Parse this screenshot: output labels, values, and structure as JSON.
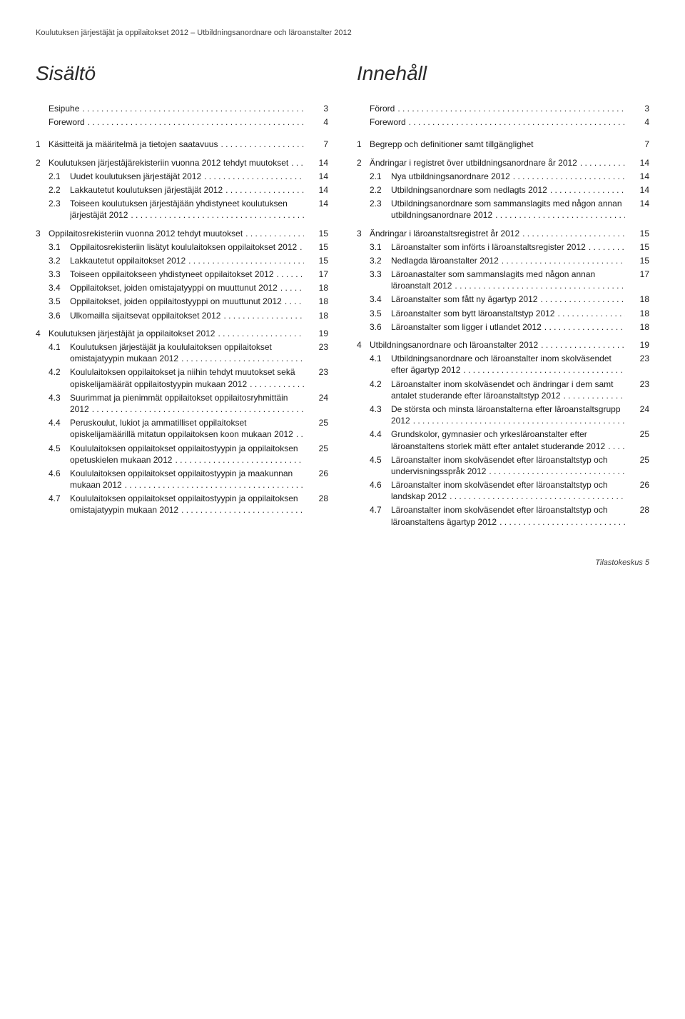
{
  "header": "Koulutuksen järjestäjät ja oppilaitokset 2012 – Utbildningsanordnare och läroanstalter 2012",
  "left": {
    "title": "Sisältö",
    "entries": [
      {
        "type": "top",
        "num": "",
        "label": "Esipuhe",
        "page": "3"
      },
      {
        "type": "top",
        "num": "",
        "label": "Foreword",
        "page": "4"
      },
      {
        "type": "gap-md"
      },
      {
        "type": "top",
        "num": "1",
        "label": "Käsitteitä ja määritelmä ja tietojen saatavuus",
        "page": "7"
      },
      {
        "type": "gap-sm"
      },
      {
        "type": "top",
        "num": "2",
        "label": "Koulutuksen järjestäjärekisteriin vuonna 2012 tehdyt muutokset",
        "page": "14"
      },
      {
        "type": "sub",
        "num": "2.1",
        "label": "Uudet koulutuksen järjestäjät 2012",
        "page": "14"
      },
      {
        "type": "sub",
        "num": "2.2",
        "label": "Lakkautetut koulutuksen järjestäjät 2012",
        "page": "14"
      },
      {
        "type": "sub",
        "num": "2.3",
        "label": "Toiseen koulutuksen järjestäjään yhdistyneet koulutuksen järjestäjät 2012",
        "page": "14"
      },
      {
        "type": "gap-sm"
      },
      {
        "type": "top",
        "num": "3",
        "label": "Oppilaitosrekisteriin vuonna 2012 tehdyt muutokset",
        "page": "15"
      },
      {
        "type": "sub",
        "num": "3.1",
        "label": "Oppilaitosrekisteriin lisätyt koululaitoksen oppilaitokset 2012",
        "page": "15"
      },
      {
        "type": "sub",
        "num": "3.2",
        "label": "Lakkautetut oppilaitokset 2012",
        "page": "15"
      },
      {
        "type": "sub",
        "num": "3.3",
        "label": "Toiseen oppilaitokseen yhdistyneet oppilaitokset 2012",
        "page": "17"
      },
      {
        "type": "sub",
        "num": "3.4",
        "label": "Oppilaitokset, joiden omistajatyyppi on muuttunut 2012",
        "page": "18"
      },
      {
        "type": "sub",
        "num": "3.5",
        "label": "Oppilaitokset, joiden oppilaitostyyppi on muuttunut 2012",
        "page": "18"
      },
      {
        "type": "sub",
        "num": "3.6",
        "label": "Ulkomailla sijaitsevat oppilaitokset 2012",
        "page": "18"
      },
      {
        "type": "gap-sm"
      },
      {
        "type": "top",
        "num": "4",
        "label": "Koulutuksen järjestäjät ja oppilaitokset 2012",
        "page": "19"
      },
      {
        "type": "sub",
        "num": "4.1",
        "label": "Koulutuksen järjestäjät ja koululaitoksen oppilaitokset omistajatyypin mukaan 2012",
        "page": "23"
      },
      {
        "type": "sub",
        "num": "4.2",
        "label": "Koululaitoksen oppilaitokset ja niihin tehdyt muutokset sekä opiskelijamäärät oppilaitostyypin mukaan 2012",
        "page": "23"
      },
      {
        "type": "sub",
        "num": "4.3",
        "label": "Suurimmat ja pienimmät oppilaitokset oppilaitosryhmittäin 2012",
        "page": "24"
      },
      {
        "type": "sub",
        "num": "4.4",
        "label": "Peruskoulut, lukiot ja ammatilliset oppilaitokset opiskelijamäärillä mitatun oppilaitoksen koon mukaan 2012",
        "page": "25"
      },
      {
        "type": "sub",
        "num": "4.5",
        "label": "Koululaitoksen oppilaitokset oppilaitostyypin ja oppilaitoksen opetuskielen mukaan 2012",
        "page": "25"
      },
      {
        "type": "sub",
        "num": "4.6",
        "label": "Koululaitoksen oppilaitokset oppilaitostyypin ja maakunnan mukaan 2012",
        "page": "26"
      },
      {
        "type": "sub",
        "num": "4.7",
        "label": "Koululaitoksen oppilaitokset oppilaitostyypin ja oppilaitoksen omistajatyypin mukaan 2012",
        "page": "28"
      }
    ]
  },
  "right": {
    "title": "Innehåll",
    "entries": [
      {
        "type": "top",
        "num": "",
        "label": "Förord",
        "page": "3"
      },
      {
        "type": "top",
        "num": "",
        "label": "Foreword",
        "page": "4"
      },
      {
        "type": "gap-md"
      },
      {
        "type": "top",
        "num": "1",
        "label": "Begrepp och definitioner samt tillgänglighet",
        "page": "7",
        "nolead": true
      },
      {
        "type": "gap-sm"
      },
      {
        "type": "top",
        "num": "2",
        "label": "Ändringar i registret över utbildningsanordnare år 2012",
        "page": "14"
      },
      {
        "type": "sub",
        "num": "2.1",
        "label": "Nya utbildningsanordnare 2012",
        "page": "14"
      },
      {
        "type": "sub",
        "num": "2.2",
        "label": "Utbildningsanordnare som nedlagts 2012",
        "page": "14"
      },
      {
        "type": "sub",
        "num": "2.3",
        "label": "Utbildningsanordnare som sammanslagits med någon annan utbildningsanordnare 2012",
        "page": "14"
      },
      {
        "type": "gap-sm"
      },
      {
        "type": "top",
        "num": "3",
        "label": "Ändringar i läroanstaltsregistret år 2012",
        "page": "15"
      },
      {
        "type": "sub",
        "num": "3.1",
        "label": "Läroanstalter som införts i läroanstaltsregister 2012",
        "page": "15"
      },
      {
        "type": "sub",
        "num": "3.2",
        "label": "Nedlagda läroanstalter 2012",
        "page": "15"
      },
      {
        "type": "sub",
        "num": "3.3",
        "label": "Läroanastalter som sammanslagits med någon annan läroanstalt 2012",
        "page": "17"
      },
      {
        "type": "sub",
        "num": "3.4",
        "label": "Läroanstalter som fått ny ägartyp 2012",
        "page": "18"
      },
      {
        "type": "sub",
        "num": "3.5",
        "label": "Läroanstalter som bytt läroanstaltstyp 2012",
        "page": "18"
      },
      {
        "type": "sub",
        "num": "3.6",
        "label": "Läroanstalter som ligger i utlandet 2012",
        "page": "18"
      },
      {
        "type": "gap-sm"
      },
      {
        "type": "top",
        "num": "4",
        "label": "Utbildningsanordnare och läroanstalter 2012",
        "page": "19"
      },
      {
        "type": "sub",
        "num": "4.1",
        "label": "Utbildningsanordnare och läroanstalter inom skolväsendet efter ägartyp 2012",
        "page": "23"
      },
      {
        "type": "sub",
        "num": "4.2",
        "label": "Läroanstalter inom skolväsendet och ändringar i dem samt antalet studerande efter läroanstaltstyp 2012",
        "page": "23"
      },
      {
        "type": "sub",
        "num": "4.3",
        "label": "De största och minsta läroanstalterna efter läroanstaltsgrupp 2012",
        "page": "24"
      },
      {
        "type": "sub",
        "num": "4.4",
        "label": "Grundskolor, gymnasier och yrkesläroanstalter efter läroanstaltens storlek mätt efter antalet studerande 2012",
        "page": "25"
      },
      {
        "type": "sub",
        "num": "4.5",
        "label": "Läroanstalter inom skolväsendet efter läroanstaltstyp och undervisningsspråk 2012",
        "page": "25"
      },
      {
        "type": "sub",
        "num": "4.6",
        "label": "Läroanstalter inom skolväsendet efter läroanstaltstyp och landskap 2012",
        "page": "26"
      },
      {
        "type": "sub",
        "num": "4.7",
        "label": "Läroanstalter inom skolväsendet efter läroanstaltstyp och läroanstaltens ägartyp 2012",
        "page": "28"
      }
    ]
  },
  "footer": "Tilastokeskus 5"
}
